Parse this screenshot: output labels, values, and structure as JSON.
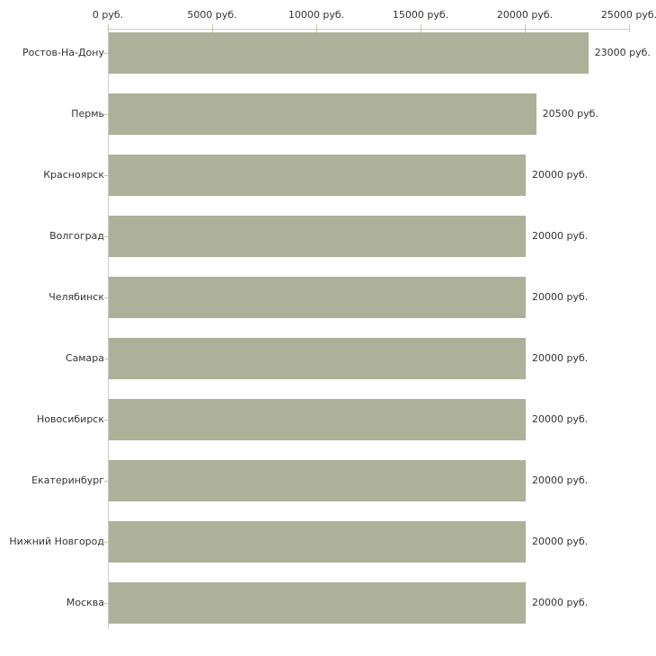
{
  "chart_data": {
    "type": "bar",
    "orientation": "horizontal",
    "title": "",
    "xlabel": "",
    "ylabel": "",
    "categories": [
      "Ростов-На-Дону",
      "Пермь",
      "Красноярск",
      "Волгоград",
      "Челябинск",
      "Самара",
      "Новосибирск",
      "Екатеринбург",
      "Нижний Новгород",
      "Москва"
    ],
    "values": [
      23000,
      20500,
      20000,
      20000,
      20000,
      20000,
      20000,
      20000,
      20000,
      20000
    ],
    "value_labels": [
      "23000 руб.",
      "20500 руб.",
      "20000 руб.",
      "20000 руб.",
      "20000 руб.",
      "20000 руб.",
      "20000 руб.",
      "20000 руб.",
      "20000 руб.",
      "20000 руб."
    ],
    "xlim": [
      0,
      25000
    ],
    "x_ticks": [
      0,
      5000,
      10000,
      15000,
      20000,
      25000
    ],
    "x_tick_labels": [
      "0 руб.",
      "5000 руб.",
      "10000 руб.",
      "15000 руб.",
      "20000 руб.",
      "25000 руб."
    ],
    "grid": false,
    "legend": false,
    "unit": "руб.",
    "colors": {
      "bar": "#adb199",
      "tick": "#c6c8a4",
      "axis_line": "#cccccc",
      "text": "#333333",
      "background": "#ffffff"
    }
  }
}
